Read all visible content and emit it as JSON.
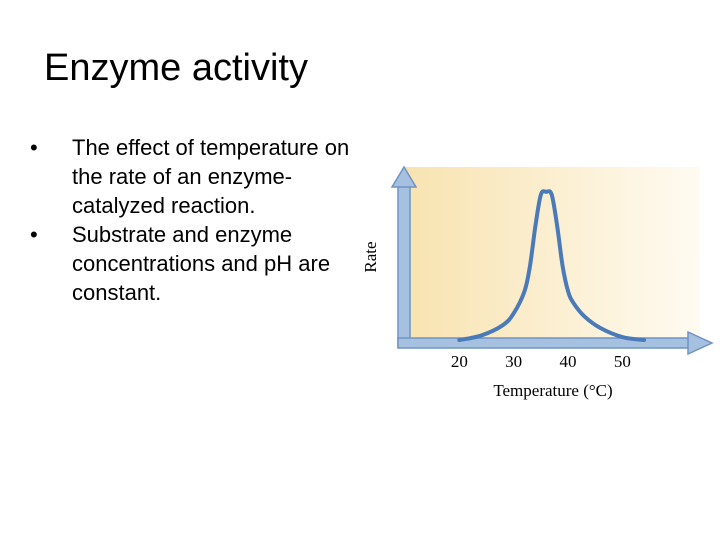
{
  "slide": {
    "title": "Enzyme activity",
    "bullets": [
      "The effect of temperature on the rate of an enzyme-catalyzed reaction.",
      "Substrate and enzyme concentrations and pH are constant."
    ]
  },
  "chart_data": {
    "type": "line",
    "xlabel": "Temperature (°C)",
    "ylabel": "Rate",
    "xticks": [
      20,
      30,
      40,
      50
    ],
    "xlim": [
      10,
      63
    ],
    "ylim": [
      0,
      1.1
    ],
    "series": [
      {
        "color": "#4a7ab8",
        "x": [
          20,
          24,
          28,
          30,
          32,
          33,
          34,
          35,
          36,
          37,
          38,
          39,
          40,
          41,
          43,
          46,
          50,
          54
        ],
        "y": [
          0,
          0.03,
          0.1,
          0.18,
          0.33,
          0.5,
          0.77,
          0.98,
          1.0,
          0.98,
          0.77,
          0.5,
          0.33,
          0.25,
          0.16,
          0.08,
          0.02,
          0
        ]
      }
    ],
    "background_gradient": [
      "#f8e3b0",
      "#fffbf2"
    ],
    "axis_color": "#a6c0e0",
    "axis_edge_color": "#6f94c4"
  }
}
